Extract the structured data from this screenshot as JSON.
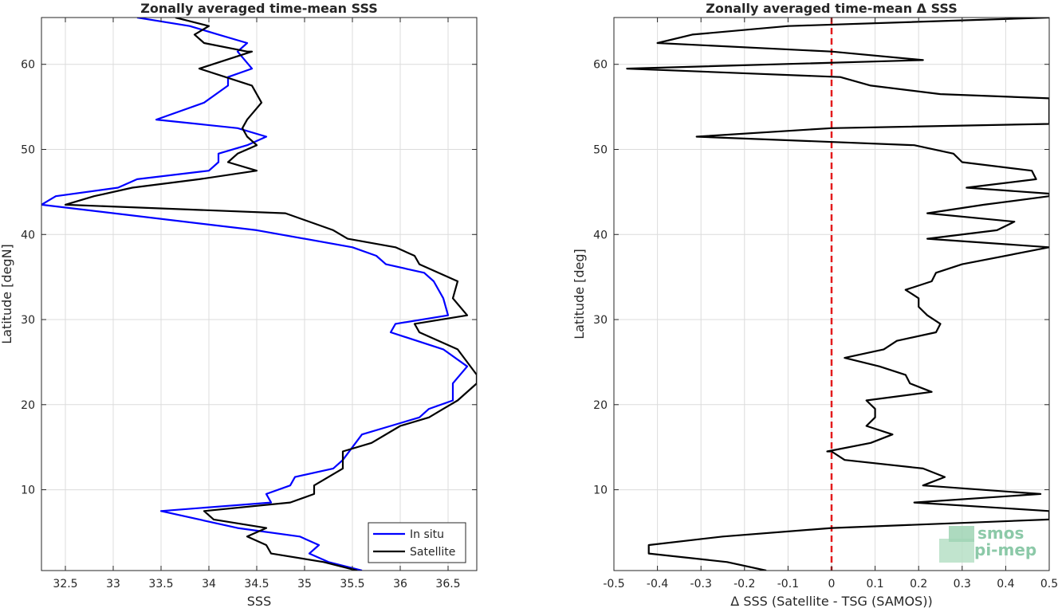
{
  "colors": {
    "insitu": "#0000ff",
    "satellite": "#000000",
    "zero_line": "#e31a1c",
    "grid": "#dcdcdc",
    "axis": "#262626",
    "logo": "#8cc9a8"
  },
  "logo": {
    "line1": "smos",
    "line2": "pi-mep"
  },
  "chart_data": [
    {
      "type": "line",
      "title": "Zonally averaged time-mean SSS",
      "xlabel": "SSS",
      "ylabel": "Latitude [degN]",
      "xlim": [
        32.25,
        36.8
      ],
      "ylim": [
        0.5,
        65.5
      ],
      "xticks": [
        32.5,
        33,
        33.5,
        34,
        34.5,
        35,
        35.5,
        36,
        36.5
      ],
      "yticks": [
        10,
        20,
        30,
        40,
        50,
        60
      ],
      "grid": true,
      "legend": {
        "position": "bottom-right",
        "entries": [
          "In situ",
          "Satellite"
        ]
      },
      "series": [
        {
          "name": "In situ",
          "color": "#0000ff",
          "points": [
            [
              35.6,
              0.5
            ],
            [
              35.25,
              1.5
            ],
            [
              35.05,
              2.5
            ],
            [
              35.15,
              3.5
            ],
            [
              34.95,
              4.5
            ],
            [
              34.3,
              5.5
            ],
            [
              33.5,
              7.5
            ],
            [
              34.65,
              8.5
            ],
            [
              34.6,
              9.5
            ],
            [
              34.85,
              10.5
            ],
            [
              34.9,
              11.5
            ],
            [
              35.3,
              12.5
            ],
            [
              35.4,
              13.5
            ],
            [
              35.6,
              16.5
            ],
            [
              35.9,
              17.5
            ],
            [
              36.2,
              18.5
            ],
            [
              36.3,
              19.5
            ],
            [
              36.55,
              20.5
            ],
            [
              36.55,
              22.5
            ],
            [
              36.7,
              24.5
            ],
            [
              36.45,
              26.5
            ],
            [
              35.9,
              28.5
            ],
            [
              35.95,
              29.5
            ],
            [
              36.5,
              30.5
            ],
            [
              36.45,
              32.5
            ],
            [
              36.35,
              34.5
            ],
            [
              36.25,
              35.5
            ],
            [
              35.85,
              36.5
            ],
            [
              35.75,
              37.5
            ],
            [
              35.5,
              38.5
            ],
            [
              34.5,
              40.5
            ],
            [
              32.25,
              43.5
            ],
            [
              32.4,
              44.5
            ],
            [
              33.05,
              45.5
            ],
            [
              33.25,
              46.5
            ],
            [
              34.0,
              47.5
            ],
            [
              34.1,
              48.5
            ],
            [
              34.1,
              49.5
            ],
            [
              34.4,
              50.5
            ],
            [
              34.6,
              51.5
            ],
            [
              34.3,
              52.5
            ],
            [
              33.45,
              53.5
            ],
            [
              33.95,
              55.5
            ],
            [
              34.2,
              57.5
            ],
            [
              34.2,
              58.5
            ],
            [
              34.45,
              59.5
            ],
            [
              34.3,
              61.5
            ],
            [
              34.4,
              62.5
            ],
            [
              34.1,
              63.5
            ],
            [
              33.8,
              64.5
            ],
            [
              33.25,
              65.5
            ]
          ]
        },
        {
          "name": "Satellite",
          "color": "#000000",
          "points": [
            [
              35.55,
              0.5
            ],
            [
              35.2,
              1.5
            ],
            [
              34.65,
              2.5
            ],
            [
              34.6,
              3.5
            ],
            [
              34.4,
              4.5
            ],
            [
              34.6,
              5.5
            ],
            [
              34.05,
              6.5
            ],
            [
              33.95,
              7.5
            ],
            [
              34.85,
              8.5
            ],
            [
              35.1,
              9.5
            ],
            [
              35.1,
              10.5
            ],
            [
              35.25,
              11.5
            ],
            [
              35.4,
              12.5
            ],
            [
              35.4,
              14.5
            ],
            [
              35.7,
              15.5
            ],
            [
              36.0,
              17.5
            ],
            [
              36.3,
              18.5
            ],
            [
              36.45,
              19.5
            ],
            [
              36.6,
              20.5
            ],
            [
              36.8,
              22.5
            ],
            [
              36.8,
              23.5
            ],
            [
              36.6,
              26.5
            ],
            [
              36.2,
              28.5
            ],
            [
              36.15,
              29.5
            ],
            [
              36.7,
              30.5
            ],
            [
              36.55,
              32.5
            ],
            [
              36.6,
              34.5
            ],
            [
              36.2,
              36.5
            ],
            [
              36.15,
              37.5
            ],
            [
              35.95,
              38.5
            ],
            [
              35.45,
              39.5
            ],
            [
              35.3,
              40.5
            ],
            [
              34.8,
              42.5
            ],
            [
              32.5,
              43.5
            ],
            [
              32.8,
              44.5
            ],
            [
              33.2,
              45.5
            ],
            [
              33.9,
              46.5
            ],
            [
              34.5,
              47.5
            ],
            [
              34.2,
              48.5
            ],
            [
              34.3,
              49.5
            ],
            [
              34.5,
              50.5
            ],
            [
              34.4,
              51.5
            ],
            [
              34.35,
              52.5
            ],
            [
              34.4,
              53.5
            ],
            [
              34.55,
              55.5
            ],
            [
              34.45,
              57.5
            ],
            [
              33.9,
              59.5
            ],
            [
              34.45,
              61.5
            ],
            [
              34.4,
              61.5
            ],
            [
              33.95,
              62.5
            ],
            [
              33.85,
              63.5
            ],
            [
              34.0,
              64.5
            ],
            [
              33.65,
              65.5
            ]
          ]
        }
      ]
    },
    {
      "type": "line",
      "title": "Zonally averaged time-mean Δ SSS",
      "xlabel": "Δ SSS (Satellite - TSG (SAMOS))",
      "ylabel": "Latitude [deg]",
      "xlim": [
        -0.5,
        0.5
      ],
      "ylim": [
        0.5,
        65.5
      ],
      "xticks": [
        -0.5,
        -0.4,
        -0.3,
        -0.2,
        -0.1,
        0,
        0.1,
        0.2,
        0.3,
        0.4,
        0.5
      ],
      "yticks": [
        10,
        20,
        30,
        40,
        50,
        60
      ],
      "grid": true,
      "reference_line": {
        "x": 0,
        "style": "dashed"
      },
      "series": [
        {
          "color": "#000000",
          "points": [
            [
              -0.15,
              0.5
            ],
            [
              -0.24,
              1.5
            ],
            [
              -0.42,
              2.5
            ],
            [
              -0.42,
              3.5
            ],
            [
              -0.25,
              4.5
            ],
            [
              0.0,
              5.5
            ],
            [
              0.5,
              6.5
            ],
            [
              0.5,
              7.5
            ],
            [
              0.19,
              8.5
            ],
            [
              0.48,
              9.5
            ],
            [
              0.21,
              10.5
            ],
            [
              0.26,
              11.5
            ],
            [
              0.21,
              12.5
            ],
            [
              0.03,
              13.5
            ],
            [
              0.0,
              14.5
            ],
            [
              -0.01,
              14.5
            ],
            [
              0.09,
              15.5
            ],
            [
              0.14,
              16.5
            ],
            [
              0.08,
              17.5
            ],
            [
              0.1,
              18.5
            ],
            [
              0.1,
              19.5
            ],
            [
              0.08,
              20.5
            ],
            [
              0.23,
              21.5
            ],
            [
              0.18,
              22.5
            ],
            [
              0.17,
              23.5
            ],
            [
              0.11,
              24.5
            ],
            [
              0.03,
              25.5
            ],
            [
              0.12,
              26.5
            ],
            [
              0.15,
              27.5
            ],
            [
              0.24,
              28.5
            ],
            [
              0.25,
              29.5
            ],
            [
              0.22,
              30.5
            ],
            [
              0.2,
              31.5
            ],
            [
              0.2,
              32.5
            ],
            [
              0.17,
              33.5
            ],
            [
              0.23,
              34.5
            ],
            [
              0.24,
              35.5
            ],
            [
              0.3,
              36.5
            ],
            [
              0.5,
              38.5
            ],
            [
              0.22,
              39.5
            ],
            [
              0.38,
              40.5
            ],
            [
              0.42,
              41.5
            ],
            [
              0.22,
              42.5
            ],
            [
              0.35,
              43.5
            ],
            [
              0.5,
              44.5
            ],
            [
              0.5,
              44.8
            ],
            [
              0.31,
              45.5
            ],
            [
              0.47,
              46.5
            ],
            [
              0.46,
              47.5
            ],
            [
              0.3,
              48.5
            ],
            [
              0.28,
              49.5
            ],
            [
              0.19,
              50.5
            ],
            [
              -0.31,
              51.5
            ],
            [
              0.0,
              52.5
            ],
            [
              0.5,
              53.0
            ],
            [
              0.5,
              56.0
            ],
            [
              0.25,
              56.5
            ],
            [
              0.09,
              57.5
            ],
            [
              0.02,
              58.5
            ],
            [
              -0.47,
              59.5
            ],
            [
              0.21,
              60.5
            ],
            [
              0.0,
              61.5
            ],
            [
              -0.4,
              62.5
            ],
            [
              -0.32,
              63.5
            ],
            [
              -0.1,
              64.5
            ],
            [
              0.5,
              65.5
            ]
          ]
        }
      ]
    }
  ]
}
